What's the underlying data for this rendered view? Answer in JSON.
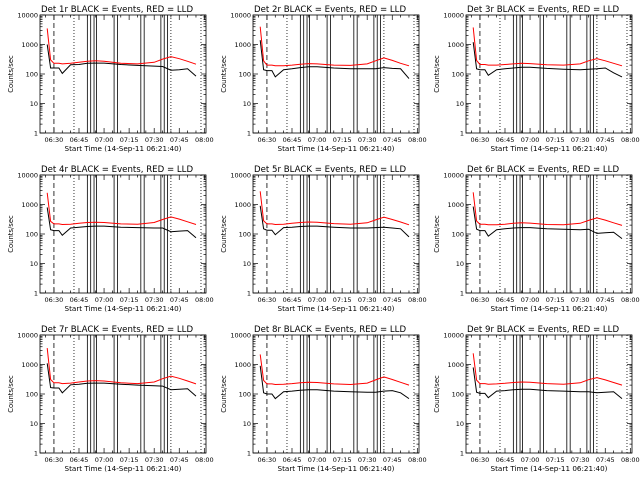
{
  "colors": {
    "events": "#000000",
    "lld": "#ff0000",
    "axes": "#000000"
  },
  "chart_data": [
    {
      "type": "line",
      "title": "Det 1r BLACK = Events, RED = LLD",
      "xlabel": "Start Time (14-Sep-11 06:21:40)",
      "ylabel": "Counts/sec",
      "xtick_labels": [
        "06:30",
        "06:45",
        "07:00",
        "07:15",
        "07:30",
        "07:45",
        "08:00"
      ],
      "ytick_labels": [
        "1",
        "10",
        "100",
        "1000",
        "10000"
      ],
      "yscale": "log",
      "ylim": [
        1,
        10000
      ],
      "xlim": [
        "06:21:40",
        "08:01:00"
      ],
      "x_minutes_after_0600": [
        26,
        28,
        30,
        33,
        35,
        40,
        45,
        50,
        55,
        60,
        70,
        80,
        90,
        95,
        100,
        105,
        110,
        115
      ],
      "series": [
        {
          "key": "events",
          "values": [
            1000,
            160,
            160,
            160,
            105,
            205,
            210,
            230,
            235,
            235,
            210,
            195,
            185,
            180,
            135,
            140,
            150,
            85
          ]
        },
        {
          "key": "lld",
          "values": [
            3500,
            300,
            230,
            230,
            220,
            230,
            250,
            270,
            280,
            270,
            230,
            220,
            250,
            320,
            390,
            330,
            270,
            215
          ]
        }
      ],
      "vlines_dashed": [
        30
      ],
      "vlines_dotted": [
        42,
        100,
        118
      ],
      "vlines_solid": [
        50,
        52,
        54,
        55.5,
        66,
        68,
        82,
        84,
        94,
        96,
        98
      ]
    },
    {
      "type": "line",
      "title": "Det 2r BLACK = Events, RED = LLD",
      "xlabel": "Start Time (14-Sep-11 06:21:40)",
      "ylabel": "Counts/sec",
      "xtick_labels": [
        "06:30",
        "06:45",
        "07:00",
        "07:15",
        "07:30",
        "07:45",
        "08:00"
      ],
      "ytick_labels": [
        "1",
        "10",
        "100",
        "1000",
        "10000"
      ],
      "yscale": "log",
      "ylim": [
        1,
        10000
      ],
      "xlim": [
        "06:21:40",
        "08:01:00"
      ],
      "x_minutes_after_0600": [
        26,
        28,
        30,
        33,
        35,
        40,
        45,
        50,
        55,
        60,
        70,
        80,
        90,
        95,
        100,
        105,
        110,
        115
      ],
      "series": [
        {
          "key": "events",
          "values": [
            1400,
            140,
            130,
            130,
            80,
            140,
            150,
            165,
            175,
            175,
            160,
            150,
            150,
            150,
            165,
            155,
            150,
            70
          ]
        },
        {
          "key": "lld",
          "values": [
            4000,
            280,
            200,
            200,
            190,
            190,
            200,
            215,
            225,
            220,
            200,
            195,
            220,
            280,
            350,
            290,
            230,
            190
          ]
        }
      ],
      "vlines_dashed": [
        30
      ],
      "vlines_dotted": [
        42,
        100,
        118
      ],
      "vlines_solid": [
        50,
        52,
        54,
        55.5,
        66,
        68,
        82,
        84,
        94,
        96,
        98
      ]
    },
    {
      "type": "line",
      "title": "Det 3r BLACK = Events, RED = LLD",
      "xlabel": "Start Time (14-Sep-11 06:21:40)",
      "ylabel": "Counts/sec",
      "xtick_labels": [
        "06:30",
        "06:45",
        "07:00",
        "07:15",
        "07:30",
        "07:45",
        "08:00"
      ],
      "ytick_labels": [
        "1",
        "10",
        "100",
        "1000",
        "10000"
      ],
      "yscale": "log",
      "ylim": [
        1,
        10000
      ],
      "xlim": [
        "06:21:40",
        "08:01:00"
      ],
      "x_minutes_after_0600": [
        26,
        28,
        30,
        33,
        35,
        40,
        45,
        50,
        55,
        60,
        70,
        80,
        90,
        95,
        100,
        105,
        110,
        115
      ],
      "series": [
        {
          "key": "events",
          "values": [
            1200,
            150,
            140,
            140,
            90,
            140,
            150,
            160,
            170,
            170,
            155,
            145,
            140,
            145,
            150,
            160,
            110,
            80
          ]
        },
        {
          "key": "lld",
          "values": [
            3800,
            290,
            210,
            210,
            200,
            200,
            210,
            220,
            230,
            225,
            205,
            200,
            220,
            280,
            330,
            280,
            230,
            190
          ]
        }
      ],
      "vlines_dashed": [
        30
      ],
      "vlines_dotted": [
        42,
        100,
        118
      ],
      "vlines_solid": [
        50,
        52,
        54,
        55.5,
        66,
        68,
        82,
        84,
        94,
        96,
        98
      ]
    },
    {
      "type": "line",
      "title": "Det 4r BLACK = Events, RED = LLD",
      "xlabel": "Start Time (14-Sep-11 06:21:40)",
      "ylabel": "Counts/sec",
      "xtick_labels": [
        "06:30",
        "06:45",
        "07:00",
        "07:15",
        "07:30",
        "07:45",
        "08:00"
      ],
      "ytick_labels": [
        "1",
        "10",
        "100",
        "1000",
        "10000"
      ],
      "yscale": "log",
      "ylim": [
        1,
        10000
      ],
      "xlim": [
        "06:21:40",
        "08:01:00"
      ],
      "x_minutes_after_0600": [
        26,
        28,
        30,
        33,
        35,
        40,
        45,
        50,
        55,
        60,
        70,
        80,
        90,
        95,
        100,
        105,
        110,
        115
      ],
      "series": [
        {
          "key": "events",
          "values": [
            800,
            140,
            130,
            130,
            90,
            160,
            170,
            180,
            185,
            185,
            170,
            165,
            160,
            160,
            120,
            125,
            130,
            75
          ]
        },
        {
          "key": "lld",
          "values": [
            2500,
            270,
            220,
            220,
            210,
            215,
            230,
            245,
            250,
            245,
            220,
            215,
            245,
            310,
            380,
            320,
            260,
            210
          ]
        }
      ],
      "vlines_dashed": [
        30
      ],
      "vlines_dotted": [
        42,
        100,
        118
      ],
      "vlines_solid": [
        50,
        52,
        54,
        55.5,
        66,
        68,
        82,
        84,
        94,
        96,
        98
      ]
    },
    {
      "type": "line",
      "title": "Det 5r BLACK = Events, RED = LLD",
      "xlabel": "Start Time (14-Sep-11 06:21:40)",
      "ylabel": "Counts/sec",
      "xtick_labels": [
        "06:30",
        "06:45",
        "07:00",
        "07:15",
        "07:30",
        "07:45",
        "08:00"
      ],
      "ytick_labels": [
        "1",
        "10",
        "100",
        "1000",
        "10000"
      ],
      "yscale": "log",
      "ylim": [
        1,
        10000
      ],
      "xlim": [
        "06:21:40",
        "08:01:00"
      ],
      "x_minutes_after_0600": [
        26,
        28,
        30,
        33,
        35,
        40,
        45,
        50,
        55,
        60,
        70,
        80,
        90,
        95,
        100,
        105,
        110,
        115
      ],
      "series": [
        {
          "key": "events",
          "values": [
            900,
            150,
            135,
            135,
            95,
            165,
            170,
            180,
            185,
            185,
            170,
            160,
            160,
            165,
            170,
            160,
            150,
            80
          ]
        },
        {
          "key": "lld",
          "values": [
            2800,
            280,
            220,
            220,
            210,
            215,
            230,
            245,
            255,
            250,
            225,
            215,
            240,
            300,
            370,
            310,
            255,
            205
          ]
        }
      ],
      "vlines_dashed": [
        30
      ],
      "vlines_dotted": [
        42,
        100,
        118
      ],
      "vlines_solid": [
        50,
        52,
        54,
        55.5,
        66,
        68,
        82,
        84,
        94,
        96,
        98
      ]
    },
    {
      "type": "line",
      "title": "Det 6r BLACK = Events, RED = LLD",
      "xlabel": "Start Time (14-Sep-11 06:21:40)",
      "ylabel": "Counts/sec",
      "xtick_labels": [
        "06:30",
        "06:45",
        "07:00",
        "07:15",
        "07:30",
        "07:45",
        "08:00"
      ],
      "ytick_labels": [
        "1",
        "10",
        "100",
        "1000",
        "10000"
      ],
      "yscale": "log",
      "ylim": [
        1,
        10000
      ],
      "xlim": [
        "06:21:40",
        "08:01:00"
      ],
      "x_minutes_after_0600": [
        26,
        28,
        30,
        33,
        35,
        40,
        45,
        50,
        55,
        60,
        70,
        80,
        90,
        95,
        100,
        105,
        110,
        115
      ],
      "series": [
        {
          "key": "events",
          "values": [
            850,
            145,
            130,
            130,
            85,
            140,
            150,
            160,
            165,
            165,
            150,
            145,
            140,
            145,
            105,
            110,
            115,
            70
          ]
        },
        {
          "key": "lld",
          "values": [
            2600,
            275,
            215,
            215,
            205,
            205,
            215,
            230,
            240,
            235,
            210,
            205,
            230,
            290,
            350,
            295,
            240,
            195
          ]
        }
      ],
      "vlines_dashed": [
        30
      ],
      "vlines_dotted": [
        42,
        100,
        118
      ],
      "vlines_solid": [
        50,
        52,
        54,
        55.5,
        66,
        68,
        82,
        84,
        94,
        96,
        98
      ]
    },
    {
      "type": "line",
      "title": "Det 7r BLACK = Events, RED = LLD",
      "xlabel": "Start Time (14-Sep-11 06:21:40)",
      "ylabel": "Counts/sec",
      "xtick_labels": [
        "06:30",
        "06:45",
        "07:00",
        "07:15",
        "07:30",
        "07:45",
        "08:00"
      ],
      "ytick_labels": [
        "1",
        "10",
        "100",
        "1000",
        "10000"
      ],
      "yscale": "log",
      "ylim": [
        1,
        10000
      ],
      "xlim": [
        "06:21:40",
        "08:01:00"
      ],
      "x_minutes_after_0600": [
        26,
        28,
        30,
        33,
        35,
        40,
        45,
        50,
        55,
        60,
        70,
        80,
        90,
        95,
        100,
        105,
        110,
        115
      ],
      "series": [
        {
          "key": "events",
          "values": [
            1100,
            165,
            160,
            160,
            110,
            205,
            215,
            230,
            235,
            235,
            215,
            200,
            190,
            185,
            140,
            145,
            150,
            85
          ]
        },
        {
          "key": "lld",
          "values": [
            3600,
            310,
            240,
            240,
            225,
            235,
            255,
            275,
            285,
            275,
            240,
            225,
            255,
            330,
            400,
            340,
            275,
            220
          ]
        }
      ],
      "vlines_dashed": [
        30
      ],
      "vlines_dotted": [
        42,
        100,
        118
      ],
      "vlines_solid": [
        50,
        52,
        54,
        55.5,
        66,
        68,
        82,
        84,
        94,
        96,
        98
      ]
    },
    {
      "type": "line",
      "title": "Det 8r BLACK = Events, RED = LLD",
      "xlabel": "Start Time (14-Sep-11 06:21:40)",
      "ylabel": "Counts/sec",
      "xtick_labels": [
        "06:30",
        "06:45",
        "07:00",
        "07:15",
        "07:30",
        "07:45",
        "08:00"
      ],
      "ytick_labels": [
        "1",
        "10",
        "100",
        "1000",
        "10000"
      ],
      "yscale": "log",
      "ylim": [
        1,
        10000
      ],
      "xlim": [
        "06:21:40",
        "08:01:00"
      ],
      "x_minutes_after_0600": [
        26,
        28,
        30,
        33,
        35,
        40,
        45,
        50,
        55,
        60,
        70,
        80,
        90,
        95,
        100,
        105,
        110,
        115
      ],
      "series": [
        {
          "key": "events",
          "values": [
            900,
            110,
            100,
            100,
            70,
            120,
            125,
            135,
            140,
            140,
            125,
            120,
            115,
            115,
            125,
            130,
            110,
            70
          ]
        },
        {
          "key": "lld",
          "values": [
            2200,
            290,
            220,
            220,
            210,
            215,
            225,
            240,
            250,
            245,
            220,
            210,
            235,
            300,
            380,
            310,
            250,
            200
          ]
        }
      ],
      "vlines_dashed": [
        30
      ],
      "vlines_dotted": [
        42,
        100,
        118
      ],
      "vlines_solid": [
        50,
        52,
        54,
        55.5,
        66,
        68,
        82,
        84,
        94,
        96,
        98
      ]
    },
    {
      "type": "line",
      "title": "Det 9r BLACK = Events, RED = LLD",
      "xlabel": "Start Time (14-Sep-11 06:21:40)",
      "ylabel": "Counts/sec",
      "xtick_labels": [
        "06:30",
        "06:45",
        "07:00",
        "07:15",
        "07:30",
        "07:45",
        "08:00"
      ],
      "ytick_labels": [
        "1",
        "10",
        "100",
        "1000",
        "10000"
      ],
      "yscale": "log",
      "ylim": [
        1,
        10000
      ],
      "xlim": [
        "06:21:40",
        "08:01:00"
      ],
      "x_minutes_after_0600": [
        26,
        28,
        30,
        33,
        35,
        40,
        45,
        50,
        55,
        60,
        70,
        80,
        90,
        95,
        100,
        105,
        110,
        115
      ],
      "series": [
        {
          "key": "events",
          "values": [
            800,
            115,
            105,
            105,
            75,
            125,
            130,
            140,
            145,
            145,
            130,
            125,
            120,
            120,
            110,
            115,
            120,
            70
          ]
        },
        {
          "key": "lld",
          "values": [
            2400,
            295,
            225,
            225,
            215,
            220,
            230,
            245,
            255,
            250,
            225,
            215,
            240,
            305,
            360,
            300,
            245,
            200
          ]
        }
      ],
      "vlines_dashed": [
        30
      ],
      "vlines_dotted": [
        42,
        100,
        118
      ],
      "vlines_solid": [
        50,
        52,
        54,
        55.5,
        66,
        68,
        82,
        84,
        94,
        96,
        98
      ]
    }
  ]
}
